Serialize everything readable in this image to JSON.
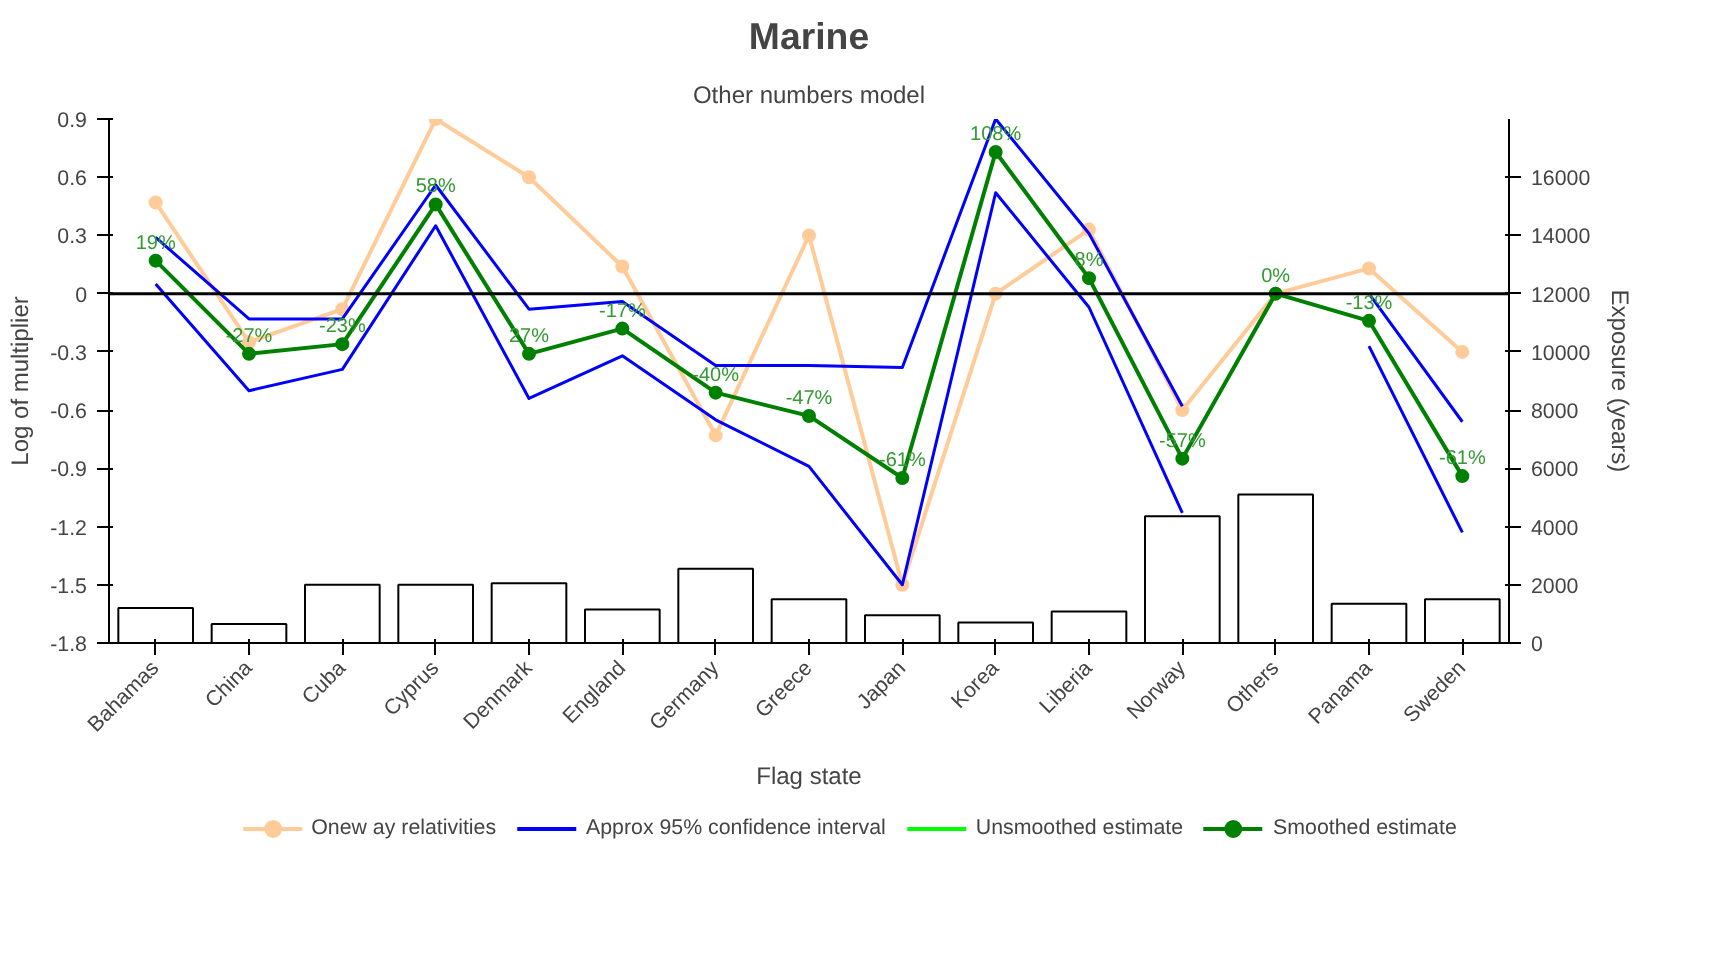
{
  "chart_data": {
    "type": "line",
    "title": "Marine",
    "subtitle": "Other numbers model",
    "xlabel": "Flag state",
    "ylabel": "Log of multiplier",
    "y2label": "Exposure (years)",
    "categories": [
      "Bahamas",
      "China",
      "Cuba",
      "Cyprus",
      "Denmark",
      "England",
      "Germany",
      "Greece",
      "Japan",
      "Korea",
      "Liberia",
      "Norway",
      "Others",
      "Panama",
      "Sweden"
    ],
    "ylim": [
      -1.8,
      0.9
    ],
    "yticks": [
      -1.8,
      -1.5,
      -1.2,
      -0.9,
      -0.6,
      -0.3,
      0,
      0.3,
      0.6,
      0.9
    ],
    "y2lim": [
      0,
      18000
    ],
    "y2ticks": [
      0,
      2000,
      4000,
      6000,
      8000,
      10000,
      12000,
      14000,
      16000
    ],
    "grid": false,
    "legend": "bottom",
    "ref_lines": [
      {
        "axis": "y",
        "value": 0,
        "color": "#000000"
      }
    ],
    "series": [
      {
        "type": "bar",
        "axis": "y2",
        "color": "#ffffff",
        "values": [
          1200,
          650,
          2000,
          2000,
          2050,
          1150,
          2550,
          1500,
          950,
          700,
          1080,
          4350,
          5100,
          1350,
          1500
        ]
      },
      {
        "name": "Onew ay relativities",
        "marker": "circle",
        "color": "#ffcc99",
        "values": [
          0.47,
          -0.25,
          -0.08,
          0.9,
          0.6,
          0.14,
          -0.73,
          0.3,
          -1.5,
          0,
          0.33,
          -0.6,
          0,
          0.13,
          -0.3
        ]
      },
      {
        "name": "Approx 95% confidence interval",
        "marker": "none",
        "color": "#0000ff",
        "values": [
          0.29,
          -0.13,
          -0.13,
          0.56,
          -0.08,
          -0.04,
          -0.37,
          -0.37,
          -0.38,
          0.9,
          0.31,
          -0.58,
          null,
          0,
          -0.66
        ]
      },
      {
        "marker": "none",
        "color": "#0000ff",
        "values": [
          0.05,
          -0.5,
          -0.39,
          0.35,
          -0.54,
          -0.32,
          -0.65,
          -0.89,
          -1.5,
          0.52,
          -0.07,
          -1.13,
          null,
          -0.27,
          -1.23
        ]
      },
      {
        "name": "Unsmoothed estimate",
        "marker": "none",
        "color": "#00ff00",
        "values": [
          null,
          null,
          null,
          null,
          null,
          null,
          null,
          null,
          null,
          null,
          null,
          null,
          null,
          null,
          null
        ]
      },
      {
        "name": "Smoothed estimate",
        "marker": "circle",
        "color": "#008000",
        "values": [
          0.17,
          -0.31,
          -0.26,
          0.46,
          -0.31,
          -0.18,
          -0.51,
          -0.63,
          -0.95,
          0.73,
          0.08,
          -0.85,
          0,
          -0.14,
          -0.94
        ]
      }
    ],
    "annotations": [
      {
        "text": "19%",
        "x": "Bahamas",
        "y": 0.17
      },
      {
        "text": "-27%",
        "x": "China",
        "y": -0.31
      },
      {
        "text": "-23%",
        "x": "Cuba",
        "y": -0.26
      },
      {
        "text": "58%",
        "x": "Cyprus",
        "y": 0.46
      },
      {
        "text": "27%",
        "x": "Denmark",
        "y": -0.31
      },
      {
        "text": "-17%",
        "x": "England",
        "y": -0.18
      },
      {
        "text": "-40%",
        "x": "Germany",
        "y": -0.51
      },
      {
        "text": "-47%",
        "x": "Greece",
        "y": -0.63
      },
      {
        "text": "-61%",
        "x": "Japan",
        "y": -0.95
      },
      {
        "text": "108%",
        "x": "Korea",
        "y": 0.73
      },
      {
        "text": "8%",
        "x": "Liberia",
        "y": 0.08
      },
      {
        "text": "-57%",
        "x": "Norway",
        "y": -0.85
      },
      {
        "text": "0%",
        "x": "Others",
        "y": 0
      },
      {
        "text": "-13%",
        "x": "Panama",
        "y": -0.14
      },
      {
        "text": "-61%",
        "x": "Sweden",
        "y": -0.94
      }
    ]
  }
}
